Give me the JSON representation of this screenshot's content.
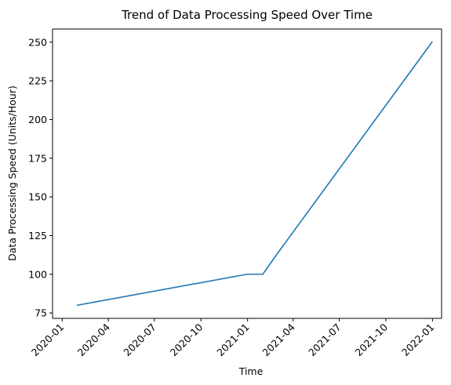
{
  "chart_data": {
    "type": "line",
    "title": "Trend of Data Processing Speed Over Time",
    "xlabel": "Time",
    "ylabel": "Data Processing Speed (Units/Hour)",
    "x_axis_type": "date",
    "xlim": [
      "2019-12-13",
      "2022-01-19"
    ],
    "ylim": [
      71.5,
      258.5
    ],
    "grid": false,
    "x_ticks": [
      {
        "value": "2020-01-01",
        "label": "2020-01"
      },
      {
        "value": "2020-04-01",
        "label": "2020-04"
      },
      {
        "value": "2020-07-01",
        "label": "2020-07"
      },
      {
        "value": "2020-10-01",
        "label": "2020-10"
      },
      {
        "value": "2021-01-01",
        "label": "2021-01"
      },
      {
        "value": "2021-04-01",
        "label": "2021-04"
      },
      {
        "value": "2021-07-01",
        "label": "2021-07"
      },
      {
        "value": "2021-10-01",
        "label": "2021-10"
      },
      {
        "value": "2022-01-01",
        "label": "2022-01"
      }
    ],
    "y_ticks": [
      75,
      100,
      125,
      150,
      175,
      200,
      225,
      250
    ],
    "series": [
      {
        "color": "#1f77b4",
        "points": [
          {
            "x": "2020-01-31",
            "y": 80
          },
          {
            "x": "2020-12-31",
            "y": 100
          },
          {
            "x": "2021-01-31",
            "y": 100
          },
          {
            "x": "2021-02-28",
            "y": 113
          },
          {
            "x": "2021-12-31",
            "y": 250
          }
        ]
      }
    ]
  }
}
